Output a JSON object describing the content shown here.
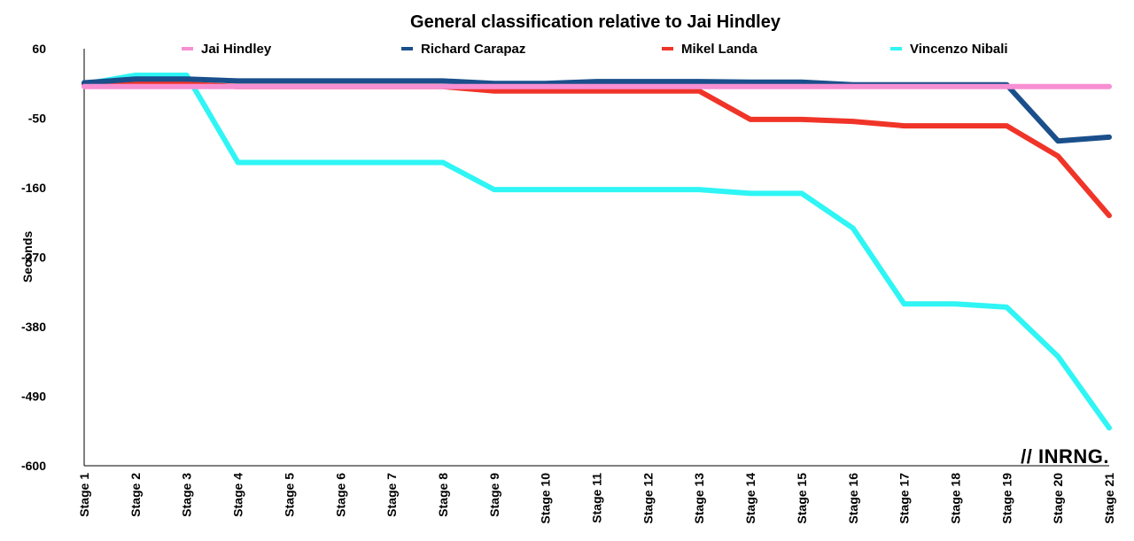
{
  "chart_data": {
    "type": "line",
    "title": "General classification relative to Jai Hindley",
    "ylabel": "Seconds",
    "xlabel": "",
    "ylim": [
      -600,
      60
    ],
    "yticks": [
      60,
      -50,
      -160,
      -270,
      -380,
      -490,
      -600
    ],
    "categories": [
      "Stage 1",
      "Stage 2",
      "Stage 3",
      "Stage 4",
      "Stage 5",
      "Stage 6",
      "Stage 7",
      "Stage 8",
      "Stage 9",
      "Stage 10",
      "Stage 11",
      "Stage 12",
      "Stage 13",
      "Stage 14",
      "Stage 15",
      "Stage 16",
      "Stage 17",
      "Stage 18",
      "Stage 19",
      "Stage 20",
      "Stage 21"
    ],
    "legend_position": "top",
    "grid": false,
    "series": [
      {
        "name": "Jai Hindley",
        "color": "#f78fd3",
        "values": [
          0,
          0,
          0,
          0,
          0,
          0,
          0,
          0,
          0,
          0,
          0,
          0,
          0,
          0,
          0,
          0,
          0,
          0,
          0,
          0,
          0
        ]
      },
      {
        "name": "Richard Carapaz",
        "color": "#1a4f8b",
        "values": [
          6,
          12,
          12,
          9,
          9,
          9,
          9,
          9,
          5,
          5,
          8,
          8,
          8,
          7,
          7,
          3,
          3,
          3,
          3,
          -86,
          -80
        ]
      },
      {
        "name": "Mikel Landa",
        "color": "#f03428",
        "values": [
          4,
          4,
          4,
          0,
          0,
          0,
          0,
          0,
          -7,
          -7,
          -7,
          -7,
          -7,
          -52,
          -52,
          -55,
          -62,
          -62,
          -62,
          -110,
          -204
        ]
      },
      {
        "name": "Vincenzo Nibali",
        "color": "#2ff5f5",
        "values": [
          4,
          18,
          18,
          -120,
          -120,
          -120,
          -120,
          -120,
          -163,
          -163,
          -163,
          -163,
          -163,
          -169,
          -169,
          -224,
          -344,
          -344,
          -349,
          -427,
          -540
        ]
      }
    ]
  },
  "watermark": "// INRNG."
}
